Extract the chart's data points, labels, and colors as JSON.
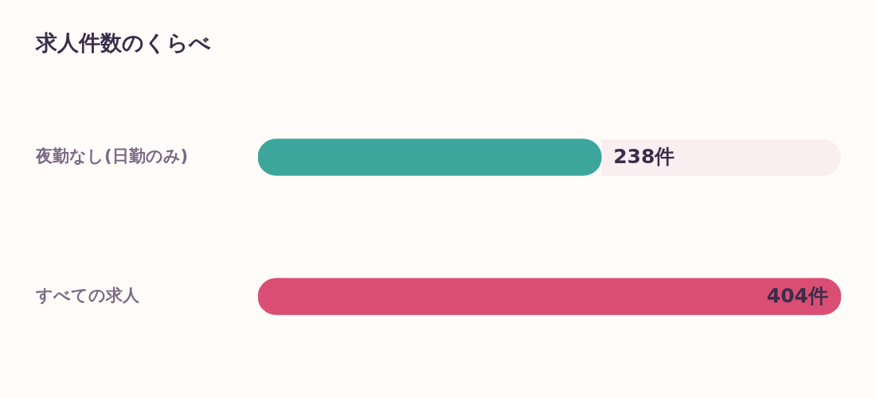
{
  "chart_data": {
    "type": "bar",
    "orientation": "horizontal",
    "title": "求人件数のくらべ",
    "categories": [
      "夜勤なし(日勤のみ)",
      "すべての求人"
    ],
    "values": [
      238,
      404
    ],
    "colors": [
      "#3ca69d",
      "#da4e74"
    ],
    "value_labels": [
      "238件",
      "404件"
    ],
    "legend": false
  }
}
